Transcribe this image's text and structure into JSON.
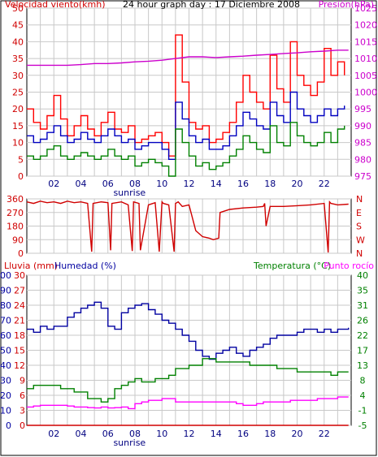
{
  "chart_data": [
    {
      "type": "line",
      "title": "24 hour graph day : 17 Diciembre 2008",
      "y_left_label": "Velocidad viento(kmh)",
      "y_right_label": "Presión(hPa)",
      "x_ticks": [
        "02",
        "04",
        "06",
        "08",
        "10",
        "12",
        "14",
        "16",
        "18",
        "20",
        "22"
      ],
      "x_range": [
        0,
        24
      ],
      "y_left_ticks": [
        0,
        5,
        10,
        15,
        20,
        25,
        30,
        35,
        40,
        45,
        50
      ],
      "y_left_range": [
        0,
        50
      ],
      "y_right_ticks": [
        975,
        980,
        985,
        990,
        995,
        1000,
        1005,
        1010,
        1015,
        1020,
        1025
      ],
      "y_right_range": [
        975,
        1025
      ],
      "grid": true,
      "annotation": "sunrise",
      "annotation_x": 7.6,
      "colors": {
        "gust": "#ff0000",
        "avg": "#0000c0",
        "min": "#008000",
        "pressure": "#cc00cc"
      },
      "series": [
        {
          "key": "gust",
          "color": "#ff0000",
          "x": [
            0,
            0.5,
            1,
            1.5,
            2,
            2.5,
            3,
            3.5,
            4,
            4.5,
            5,
            5.5,
            6,
            6.5,
            7,
            7.5,
            8,
            8.5,
            9,
            9.5,
            10,
            10.5,
            11,
            11.5,
            12,
            12.5,
            13,
            13.5,
            14,
            14.5,
            15,
            15.5,
            16,
            16.5,
            17,
            17.5,
            18,
            18.5,
            19,
            19.5,
            20,
            20.5,
            21,
            21.5,
            22,
            22.5,
            23,
            23.5
          ],
          "y": [
            20,
            16,
            14,
            18,
            24,
            17,
            12,
            15,
            18,
            14,
            12,
            16,
            19,
            14,
            13,
            15,
            10,
            11,
            12,
            13,
            10,
            6,
            42,
            28,
            16,
            14,
            15,
            10,
            11,
            13,
            16,
            22,
            30,
            25,
            22,
            20,
            36,
            26,
            22,
            40,
            30,
            27,
            24,
            28,
            38,
            30,
            34,
            30
          ]
        },
        {
          "key": "avg",
          "color": "#0000c0",
          "x": [
            0,
            0.5,
            1,
            1.5,
            2,
            2.5,
            3,
            3.5,
            4,
            4.5,
            5,
            5.5,
            6,
            6.5,
            7,
            7.5,
            8,
            8.5,
            9,
            9.5,
            10,
            10.5,
            11,
            11.5,
            12,
            12.5,
            13,
            13.5,
            14,
            14.5,
            15,
            15.5,
            16,
            16.5,
            17,
            17.5,
            18,
            18.5,
            19,
            19.5,
            20,
            20.5,
            21,
            21.5,
            22,
            22.5,
            23,
            23.5
          ],
          "y": [
            12,
            10,
            11,
            13,
            15,
            12,
            10,
            11,
            13,
            11,
            10,
            12,
            14,
            12,
            10,
            11,
            8,
            9,
            10,
            10,
            8,
            5,
            22,
            17,
            12,
            10,
            11,
            8,
            8,
            9,
            12,
            15,
            19,
            17,
            15,
            14,
            22,
            18,
            16,
            25,
            20,
            18,
            16,
            18,
            20,
            18,
            20,
            21
          ]
        },
        {
          "key": "min",
          "color": "#008000",
          "x": [
            0,
            0.5,
            1,
            1.5,
            2,
            2.5,
            3,
            3.5,
            4,
            4.5,
            5,
            5.5,
            6,
            6.5,
            7,
            7.5,
            8,
            8.5,
            9,
            9.5,
            10,
            10.5,
            11,
            11.5,
            12,
            12.5,
            13,
            13.5,
            14,
            14.5,
            15,
            15.5,
            16,
            16.5,
            17,
            17.5,
            18,
            18.5,
            19,
            19.5,
            20,
            20.5,
            21,
            21.5,
            22,
            22.5,
            23,
            23.5
          ],
          "y": [
            6,
            5,
            6,
            8,
            9,
            6,
            5,
            6,
            7,
            6,
            5,
            6,
            8,
            6,
            5,
            6,
            3,
            4,
            5,
            4,
            3,
            0,
            14,
            10,
            6,
            3,
            4,
            2,
            3,
            4,
            6,
            8,
            12,
            10,
            8,
            7,
            15,
            10,
            9,
            16,
            12,
            10,
            9,
            10,
            13,
            10,
            14,
            15
          ]
        },
        {
          "key": "pressure",
          "color": "#cc00cc",
          "x": [
            0,
            1,
            2,
            3,
            4,
            5,
            6,
            7,
            8,
            9,
            10,
            11,
            12,
            13,
            14,
            15,
            16,
            17,
            18,
            19,
            20,
            21,
            22,
            23,
            23.8
          ],
          "y": [
            1008,
            1008,
            1008,
            1008,
            1008.2,
            1008.5,
            1008.5,
            1008.7,
            1009,
            1009.2,
            1009.5,
            1010,
            1010.5,
            1010.5,
            1010.3,
            1010.5,
            1010.7,
            1011,
            1011.2,
            1011.5,
            1011.7,
            1012,
            1012.2,
            1012.5,
            1012.5
          ]
        }
      ]
    },
    {
      "type": "line",
      "y_left_ticks": [
        0,
        90,
        180,
        270,
        360
      ],
      "y_left_range": [
        0,
        360
      ],
      "y_right_ticks": [
        "N",
        "W",
        "S",
        "E",
        "N"
      ],
      "x_range": [
        0,
        24
      ],
      "grid": true,
      "series": [
        {
          "key": "direction",
          "color": "#d00000",
          "x": [
            0,
            0.5,
            1,
            1.5,
            2,
            2.5,
            3,
            3.5,
            4,
            4.5,
            4.8,
            4.9,
            5.5,
            6,
            6.2,
            6.3,
            7,
            7.5,
            7.8,
            7.9,
            8.3,
            8.4,
            9,
            9.5,
            9.8,
            10,
            10.1,
            10.5,
            10.9,
            11,
            11.2,
            11.5,
            12,
            12.5,
            13,
            13.5,
            13.8,
            14.2,
            14.3,
            15,
            16,
            17,
            17.5,
            17.6,
            17.7,
            18,
            19,
            20,
            21,
            22,
            22.3,
            22.4,
            22.5,
            23,
            23.8
          ],
          "y": [
            340,
            330,
            345,
            335,
            340,
            330,
            345,
            335,
            340,
            330,
            10,
            330,
            340,
            335,
            20,
            330,
            340,
            320,
            15,
            340,
            330,
            20,
            320,
            335,
            10,
            340,
            330,
            320,
            10,
            330,
            340,
            310,
            320,
            150,
            110,
            100,
            90,
            100,
            270,
            290,
            300,
            305,
            310,
            330,
            180,
            310,
            310,
            315,
            320,
            330,
            5,
            340,
            330,
            320,
            325
          ]
        }
      ]
    },
    {
      "type": "line",
      "y_left_label": "Lluvia (mm)",
      "y_left2_label": "Humedad (%)",
      "y_right_label": "Temperatura (°C)",
      "y_right2_label": "Punto rocío",
      "x_ticks": [
        "02",
        "04",
        "06",
        "08",
        "10",
        "12",
        "14",
        "16",
        "18",
        "20",
        "22"
      ],
      "x_range": [
        0,
        24
      ],
      "y_rain_ticks": [
        0,
        3,
        6,
        9,
        12,
        15,
        18,
        21,
        24,
        27,
        30
      ],
      "y_rain_range": [
        0,
        30
      ],
      "y_hum_ticks": [
        0,
        10,
        20,
        30,
        40,
        50,
        60,
        70,
        80,
        90,
        100
      ],
      "y_hum_range": [
        0,
        100
      ],
      "y_temp_ticks": [
        -5,
        -1,
        4,
        8,
        13,
        17,
        22,
        26,
        31,
        35,
        40
      ],
      "y_temp_range": [
        -5,
        40
      ],
      "grid": true,
      "annotation": "sunrise",
      "annotation_x": 7.6,
      "series": [
        {
          "key": "humidity",
          "color": "#0000a0",
          "x": [
            0,
            0.5,
            1,
            1.5,
            2,
            2.5,
            3,
            3.5,
            4,
            4.5,
            5,
            5.5,
            6,
            6.5,
            7,
            7.5,
            8,
            8.5,
            9,
            9.5,
            10,
            10.5,
            11,
            11.5,
            12,
            12.5,
            13,
            13.5,
            14,
            14.5,
            15,
            15.5,
            16,
            16.5,
            17,
            17.5,
            18,
            18.5,
            19,
            19.5,
            20,
            20.5,
            21,
            21.5,
            22,
            22.5,
            23,
            23.8
          ],
          "y": [
            64,
            62,
            66,
            64,
            66,
            66,
            72,
            75,
            78,
            80,
            82,
            78,
            66,
            64,
            75,
            78,
            80,
            81,
            77,
            74,
            70,
            68,
            64,
            60,
            56,
            50,
            46,
            44,
            48,
            50,
            52,
            48,
            46,
            50,
            52,
            54,
            58,
            60,
            60,
            60,
            62,
            64,
            64,
            62,
            64,
            62,
            64,
            65
          ]
        },
        {
          "key": "temperature",
          "color": "#008000",
          "x": [
            0,
            0.5,
            1,
            1.5,
            2,
            2.5,
            3,
            3.5,
            4,
            4.5,
            5,
            5.5,
            6,
            6.5,
            7,
            7.5,
            8,
            8.5,
            9,
            9.5,
            10,
            10.5,
            11,
            11.5,
            12,
            12.5,
            13,
            13.5,
            14,
            14.5,
            15,
            15.5,
            16,
            16.5,
            17,
            17.5,
            18,
            18.5,
            19,
            19.5,
            20,
            20.5,
            21,
            21.5,
            22,
            22.5,
            23,
            23.8
          ],
          "y": [
            6,
            7,
            7,
            7,
            7,
            6,
            6,
            5,
            5,
            3,
            3,
            2,
            3,
            6,
            7,
            8,
            9,
            8,
            8,
            9,
            9,
            10,
            12,
            12,
            13,
            13,
            15,
            15,
            14,
            14,
            14,
            14,
            14,
            13,
            13,
            13,
            13,
            12,
            12,
            12,
            11,
            11,
            11,
            11,
            11,
            10,
            11,
            11
          ]
        },
        {
          "key": "dewpoint",
          "color": "#ff00ff",
          "x": [
            0,
            0.5,
            1,
            1.5,
            2,
            2.5,
            3,
            3.5,
            4,
            4.5,
            5,
            5.5,
            6,
            6.5,
            7,
            7.5,
            8,
            8.5,
            9,
            9.5,
            10,
            10.5,
            11,
            11.5,
            12,
            12.5,
            13,
            13.5,
            14,
            14.5,
            15,
            15.5,
            16,
            16.5,
            17,
            17.5,
            18,
            18.5,
            19,
            19.5,
            20,
            20.5,
            21,
            21.5,
            22,
            22.5,
            23,
            23.8
          ],
          "y": [
            0.5,
            0.8,
            1,
            1,
            1,
            1,
            0.8,
            0.5,
            0.5,
            0.3,
            0.2,
            0.5,
            0.2,
            0.3,
            0.5,
            0,
            1.5,
            2,
            2.5,
            2.5,
            3,
            3,
            2,
            2,
            2,
            2,
            2,
            2,
            2,
            2,
            2,
            1.5,
            1,
            1,
            1.5,
            2,
            2,
            2,
            2,
            2.5,
            2.5,
            2.5,
            2.5,
            3,
            3,
            3,
            3.5,
            3.5
          ]
        },
        {
          "key": "rain",
          "color": "#d00000",
          "x": [
            0,
            23.8
          ],
          "y": [
            0,
            0
          ]
        }
      ]
    }
  ],
  "labels": {
    "sunrise": "sunrise"
  }
}
